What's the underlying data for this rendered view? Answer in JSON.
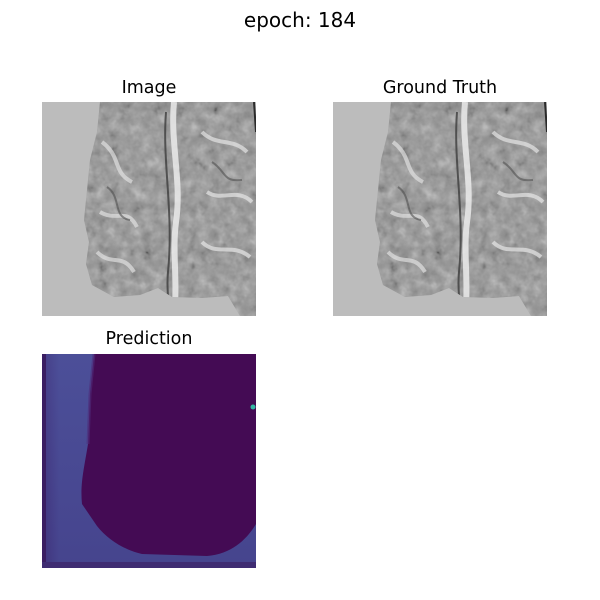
{
  "figure": {
    "suptitle": "epoch: 184"
  },
  "panels": [
    {
      "title": "Image",
      "kind": "grayscale-mri"
    },
    {
      "title": "Ground Truth",
      "kind": "grayscale-mri"
    },
    {
      "title": "Prediction",
      "kind": "viridis-mask"
    }
  ],
  "colors": {
    "background": "#ffffff",
    "mri_background": "#bcbcbc",
    "brain_base": "#8f8f8f",
    "brain_light": "#d9d9d9",
    "brain_dark": "#4a4a4a",
    "pred_dark": "#440b54",
    "pred_light": "#47458f",
    "pred_spot": "#35b7a3"
  }
}
